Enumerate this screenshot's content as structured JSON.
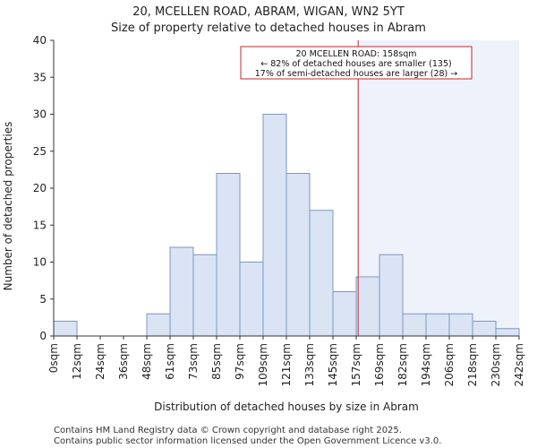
{
  "chart_data": {
    "type": "bar",
    "title": "20, MCELLEN ROAD, ABRAM, WIGAN, WN2 5YT",
    "subtitle": "Size of property relative to detached houses in Abram",
    "xlabel": "Distribution of detached houses by size in Abram",
    "ylabel": "Number of detached properties",
    "ylim": [
      0,
      40
    ],
    "yticks": [
      0,
      5,
      10,
      15,
      20,
      25,
      30,
      35,
      40
    ],
    "bin_edges": [
      "0sqm",
      "12sqm",
      "24sqm",
      "36sqm",
      "48sqm",
      "61sqm",
      "73sqm",
      "85sqm",
      "97sqm",
      "109sqm",
      "121sqm",
      "133sqm",
      "145sqm",
      "157sqm",
      "169sqm",
      "182sqm",
      "194sqm",
      "206sqm",
      "218sqm",
      "230sqm",
      "242sqm"
    ],
    "values": [
      2,
      0,
      0,
      0,
      3,
      12,
      11,
      22,
      10,
      30,
      22,
      17,
      6,
      8,
      11,
      3,
      3,
      3,
      2,
      1
    ],
    "property_value_sqm": 158,
    "colors": {
      "bar_fill": "#dae4f5",
      "bar_stroke": "#7d97bd",
      "highlight_region": "#eef2fb",
      "marker_line": "#c0272d",
      "annotation_border": "#c0272d"
    },
    "annotation": {
      "line1": "20 MCELLEN ROAD: 158sqm",
      "line2": "← 82% of detached houses are smaller (135)",
      "line3": "17% of semi-detached houses are larger (28) →"
    }
  },
  "footer": {
    "line1": "Contains HM Land Registry data © Crown copyright and database right 2025.",
    "line2": "Contains public sector information licensed under the Open Government Licence v3.0."
  }
}
